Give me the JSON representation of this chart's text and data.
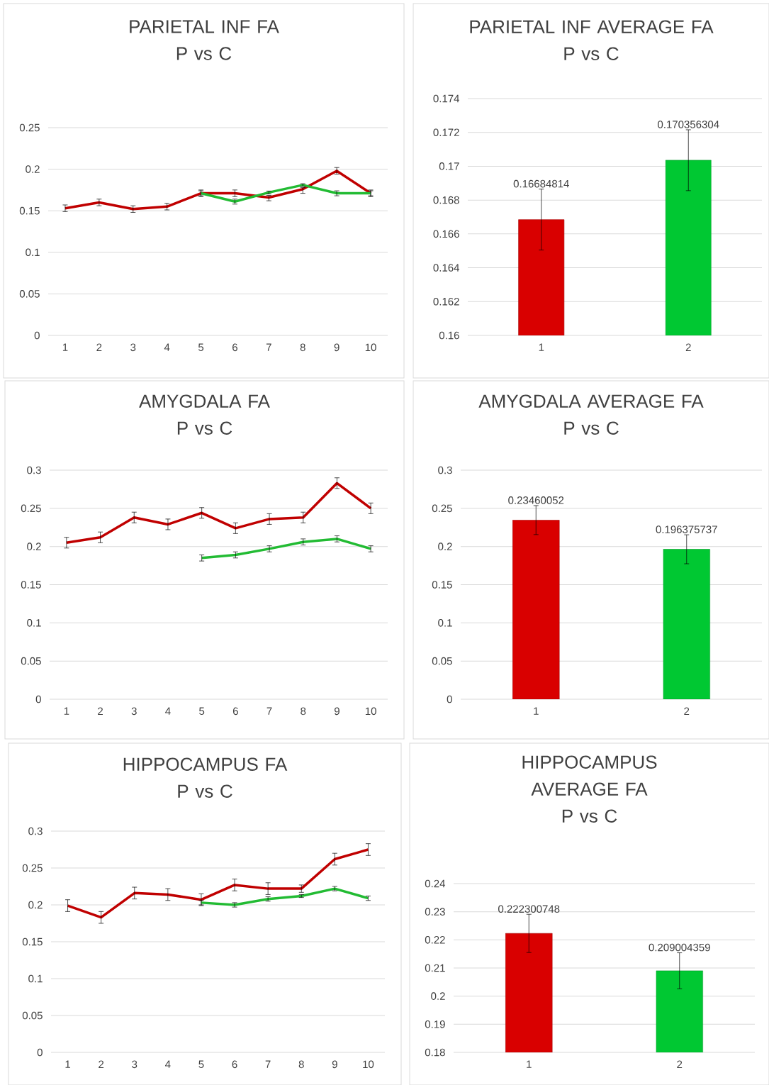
{
  "chart_data": [
    {
      "type": "line",
      "title": "PARIETAL INF FA",
      "subtitle": "P vs C",
      "categories": [
        "1",
        "2",
        "3",
        "4",
        "5",
        "6",
        "7",
        "8",
        "9",
        "10"
      ],
      "ylim": [
        0,
        0.25
      ],
      "yticks": [
        0,
        0.05,
        0.1,
        0.15,
        0.2,
        0.25
      ],
      "grid": "y",
      "series": [
        {
          "color": "#c00000",
          "values": [
            0.153,
            0.16,
            0.152,
            0.155,
            0.171,
            0.171,
            0.166,
            0.176,
            0.198,
            0.171
          ],
          "errors": [
            0.004,
            0.004,
            0.004,
            0.004,
            0.004,
            0.004,
            [
              0.162,
              0.1685
            ],
            [
              0.171,
              0.178
            ],
            0.004,
            0.004
          ]
        },
        {
          "color": "#22bb33",
          "values": [
            null,
            null,
            null,
            null,
            0.171,
            0.161,
            0.172,
            0.181,
            0.171,
            0.171
          ],
          "errors": [
            null,
            null,
            null,
            null,
            0.003,
            0.003,
            0.0017,
            0.0015,
            0.003,
            0.003
          ]
        }
      ]
    },
    {
      "type": "bar",
      "title": "PARIETAL INF AVERAGE FA",
      "subtitle": "P vs C",
      "categories": [
        "1",
        "2"
      ],
      "values": [
        0.16684814,
        0.170356304
      ],
      "colors": [
        "#d90000",
        "#00c832"
      ],
      "errors": [
        0.0018,
        0.0018
      ],
      "value_labels": [
        "0.16684814",
        "0.170356304"
      ],
      "ylim": [
        0.16,
        0.174
      ],
      "yticks": [
        0.16,
        0.162,
        0.164,
        0.166,
        0.168,
        0.17,
        0.172,
        0.174
      ],
      "grid": "y"
    },
    {
      "type": "line",
      "title": "AMYGDALA FA",
      "subtitle": "P vs C",
      "categories": [
        "1",
        "2",
        "3",
        "4",
        "5",
        "6",
        "7",
        "8",
        "9",
        "10"
      ],
      "ylim": [
        0,
        0.3
      ],
      "yticks": [
        0,
        0.05,
        0.1,
        0.15,
        0.2,
        0.25,
        0.3
      ],
      "grid": "y",
      "series": [
        {
          "color": "#c00000",
          "values": [
            0.205,
            0.212,
            0.238,
            0.229,
            0.244,
            0.224,
            0.236,
            0.238,
            0.283,
            0.25
          ],
          "errors": [
            0.007,
            0.007,
            0.007,
            0.007,
            0.007,
            0.007,
            0.007,
            0.007,
            0.007,
            0.007
          ]
        },
        {
          "color": "#22bb33",
          "values": [
            null,
            null,
            null,
            null,
            0.185,
            0.189,
            0.197,
            0.206,
            0.21,
            0.197
          ],
          "errors": [
            null,
            null,
            null,
            null,
            0.004,
            0.004,
            0.004,
            0.004,
            0.004,
            0.004
          ]
        }
      ]
    },
    {
      "type": "bar",
      "title": "AMYGDALA AVERAGE FA",
      "subtitle": "P vs C",
      "categories": [
        "1",
        "2"
      ],
      "values": [
        0.23460052,
        0.196375737
      ],
      "colors": [
        "#d90000",
        "#00c832"
      ],
      "errors": [
        0.019,
        0.019
      ],
      "value_labels": [
        "0.23460052",
        "0.196375737"
      ],
      "ylim": [
        0,
        0.3
      ],
      "yticks": [
        0,
        0.05,
        0.1,
        0.15,
        0.2,
        0.25,
        0.3
      ],
      "grid": "y"
    },
    {
      "type": "line",
      "title": "HIPPOCAMPUS FA",
      "subtitle": "P vs C",
      "categories": [
        "1",
        "2",
        "3",
        "4",
        "5",
        "6",
        "7",
        "8",
        "9",
        "10"
      ],
      "ylim": [
        0,
        0.3
      ],
      "yticks": [
        0,
        0.05,
        0.1,
        0.15,
        0.2,
        0.25,
        0.3
      ],
      "grid": "y",
      "series": [
        {
          "color": "#c00000",
          "values": [
            0.199,
            0.183,
            0.216,
            0.214,
            0.207,
            0.227,
            0.222,
            0.222,
            0.262,
            0.275
          ],
          "errors": [
            0.008,
            0.008,
            0.008,
            0.008,
            0.008,
            0.008,
            0.008,
            0.005,
            0.008,
            0.008
          ]
        },
        {
          "color": "#22bb33",
          "values": [
            null,
            null,
            null,
            null,
            0.203,
            0.2,
            0.208,
            0.212,
            0.222,
            0.209
          ],
          "errors": [
            null,
            null,
            null,
            null,
            0.003,
            0.003,
            0.003,
            0.002,
            0.003,
            0.003
          ]
        }
      ]
    },
    {
      "type": "bar",
      "title": "HIPPOCAMPUS AVERAGE FA",
      "subtitle": "P vs C",
      "categories": [
        "1",
        "2"
      ],
      "values": [
        0.222300748,
        0.209004359
      ],
      "colors": [
        "#d90000",
        "#00c832"
      ],
      "errors": [
        0.0068,
        0.0064
      ],
      "value_labels": [
        "0.222300748",
        "0.209004359"
      ],
      "ylim": [
        0.18,
        0.24
      ],
      "yticks": [
        0.18,
        0.19,
        0.2,
        0.21,
        0.22,
        0.23,
        0.24
      ],
      "grid": "y"
    }
  ]
}
